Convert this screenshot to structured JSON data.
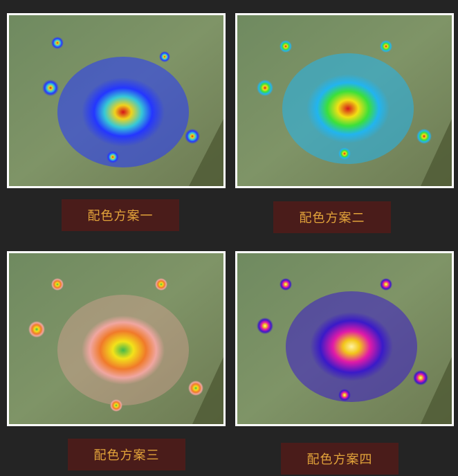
{
  "panels": [
    {
      "caption": "配色方案一",
      "palette": "blue-green-yellow-red"
    },
    {
      "caption": "配色方案二",
      "palette": "cyan-green-yellow-red"
    },
    {
      "caption": "配色方案三",
      "palette": "pink-orange-yellow-green"
    },
    {
      "caption": "配色方案四",
      "palette": "blue-purple-magenta-yellow"
    }
  ],
  "colors": {
    "background": "#242424",
    "caption_bg": "#4a1c1a",
    "caption_text": "#e2a33a",
    "border": "#ffffff"
  }
}
